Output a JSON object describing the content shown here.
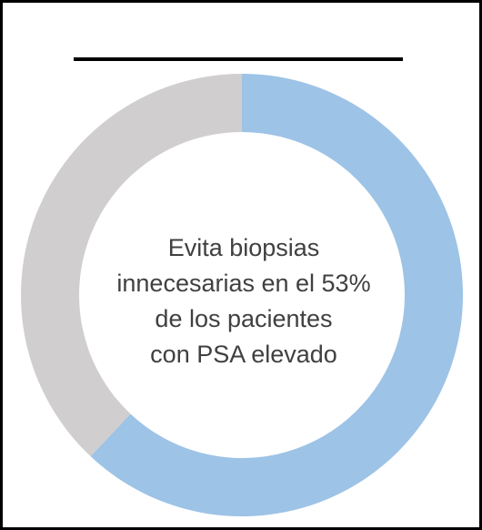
{
  "chart_data": {
    "type": "pie",
    "variant": "donut",
    "slices": [
      {
        "value": 62,
        "color": "#9dc3e6"
      },
      {
        "value": 38,
        "color": "#d0cece"
      }
    ],
    "center_text": [
      "Evita biopsias",
      "innecesarias en el 53%",
      "de los pacientes",
      "con PSA elevado"
    ]
  }
}
